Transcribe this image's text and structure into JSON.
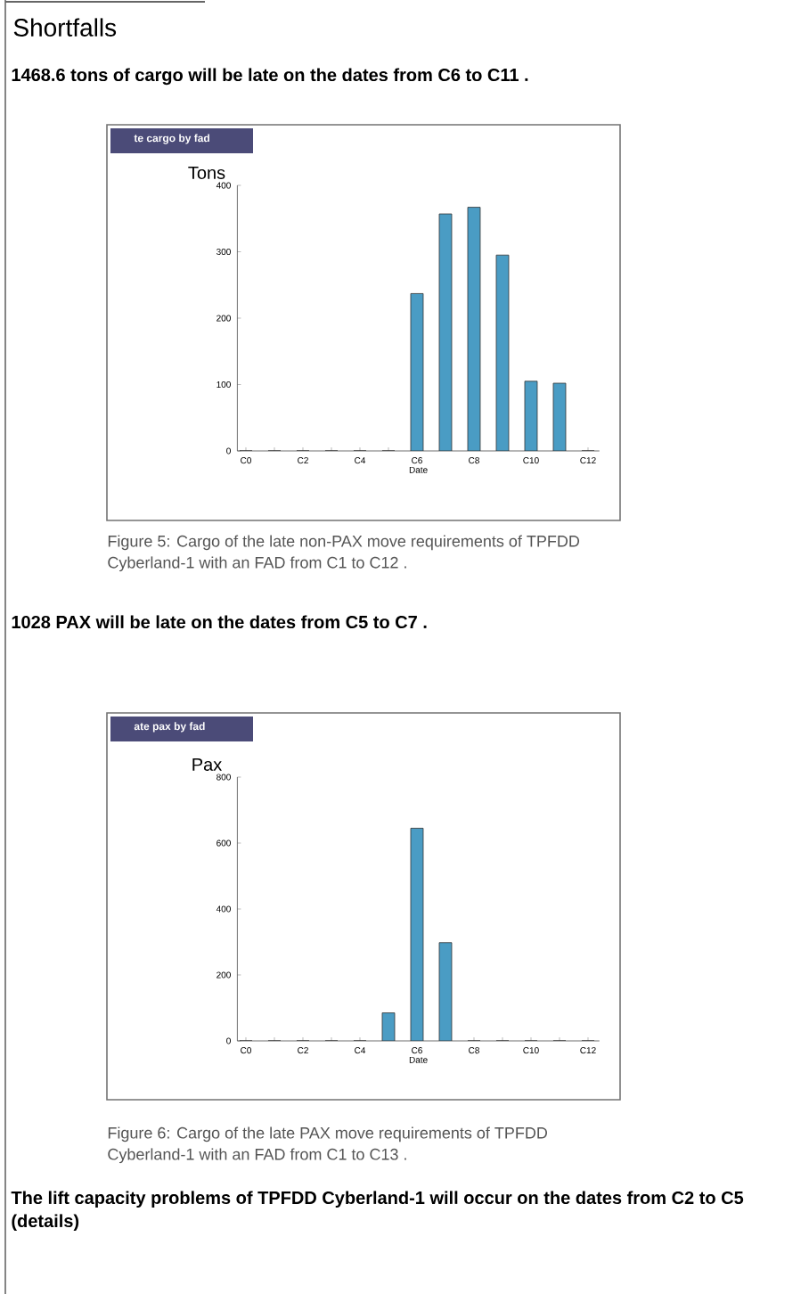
{
  "chart_data": [
    {
      "type": "bar",
      "title": "te cargo by fad",
      "xlabel": "Date",
      "ylabel": "Tons",
      "annotations": [
        "Shortfalls",
        "1468.6 tons of cargo will be late on the dates from C6 to C11 .",
        "Figure 5:  Cargo of the late non-PAX move requirements of TPFDD Cyberland-1 with an FAD from C1 to C12 ."
      ],
      "categories": [
        "C0",
        null,
        "C2",
        null,
        "C4",
        null,
        "C6",
        null,
        "C8",
        null,
        "C10",
        null,
        "C12"
      ],
      "values": [
        0,
        0,
        0,
        0,
        0,
        0,
        237,
        357,
        367,
        295,
        105,
        102,
        0
      ],
      "color": "#4a9cc4",
      "ylim": [
        0,
        400
      ],
      "yticks": [
        0,
        100,
        200,
        300,
        400
      ]
    },
    {
      "type": "bar",
      "title": "ate pax by fad",
      "xlabel": "Date",
      "ylabel": "Pax",
      "annotations": [
        "1028 PAX will be late on the dates from C5 to C7 .",
        "Figure 6:  Cargo of the late PAX move requirements of TPFDD Cyberland-1 with an FAD from C1 to C13 .",
        "The lift capacity problems of TPFDD Cyberland-1 will occur on the dates from C2 to C5 (details)"
      ],
      "categories": [
        "C0",
        null,
        "C2",
        null,
        "C4",
        null,
        "C6",
        null,
        "C8",
        null,
        "C10",
        null,
        "C12"
      ],
      "values": [
        0,
        0,
        0,
        0,
        0,
        85,
        645,
        298,
        0,
        0,
        0,
        0,
        0
      ],
      "color": "#4a9cc4",
      "ylim": [
        0,
        800
      ],
      "yticks": [
        0,
        200,
        400,
        600,
        800
      ]
    }
  ]
}
